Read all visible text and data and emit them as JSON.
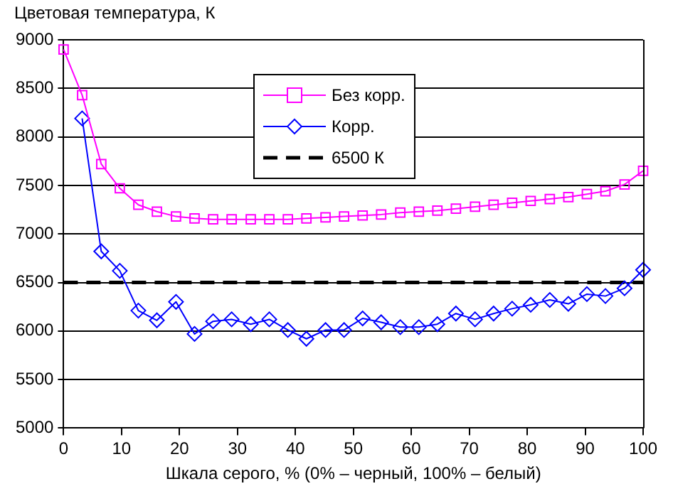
{
  "chart_data": {
    "type": "line",
    "ylabel": "Цветовая температура, К",
    "xlabel": "Шкала серого, % (0% – черный, 100% – белый)",
    "x": [
      0,
      3.2,
      6.5,
      9.7,
      12.9,
      16.1,
      19.4,
      22.6,
      25.8,
      29,
      32.3,
      35.5,
      38.7,
      41.9,
      45.2,
      48.4,
      51.6,
      54.8,
      58.1,
      61.3,
      64.5,
      67.7,
      71,
      74.2,
      77.4,
      80.6,
      83.9,
      87.1,
      90.3,
      93.5,
      96.8,
      100
    ],
    "series": [
      {
        "name": "Без корр.",
        "color": "#ff00ff",
        "marker": "square",
        "values": [
          8900,
          8430,
          7720,
          7470,
          7300,
          7230,
          7180,
          7160,
          7150,
          7150,
          7150,
          7150,
          7150,
          7160,
          7170,
          7180,
          7190,
          7200,
          7220,
          7230,
          7240,
          7260,
          7280,
          7300,
          7320,
          7340,
          7360,
          7380,
          7410,
          7440,
          7510,
          7650
        ]
      },
      {
        "name": "Корр.",
        "color": "#0000ff",
        "marker": "diamond",
        "values": [
          null,
          8190,
          6820,
          6620,
          6210,
          6110,
          6300,
          5970,
          6100,
          6120,
          6070,
          6120,
          6010,
          5920,
          6010,
          6010,
          6130,
          6090,
          6040,
          6040,
          6070,
          6180,
          6120,
          6180,
          6230,
          6270,
          6320,
          6280,
          6380,
          6360,
          6440,
          6630
        ]
      }
    ],
    "ref_lines": [
      {
        "axis": "y",
        "value": 6500,
        "label": "6500 К",
        "color": "#000000",
        "line_style": "dashed"
      }
    ],
    "xlim": [
      0,
      100
    ],
    "xticks": [
      0,
      10,
      20,
      30,
      40,
      50,
      60,
      70,
      80,
      90,
      100
    ],
    "ylim": [
      5000,
      9000
    ],
    "yticks": [
      5000,
      5500,
      6000,
      6500,
      7000,
      7500,
      8000,
      8500,
      9000
    ],
    "grid": "y",
    "legend": "top"
  }
}
